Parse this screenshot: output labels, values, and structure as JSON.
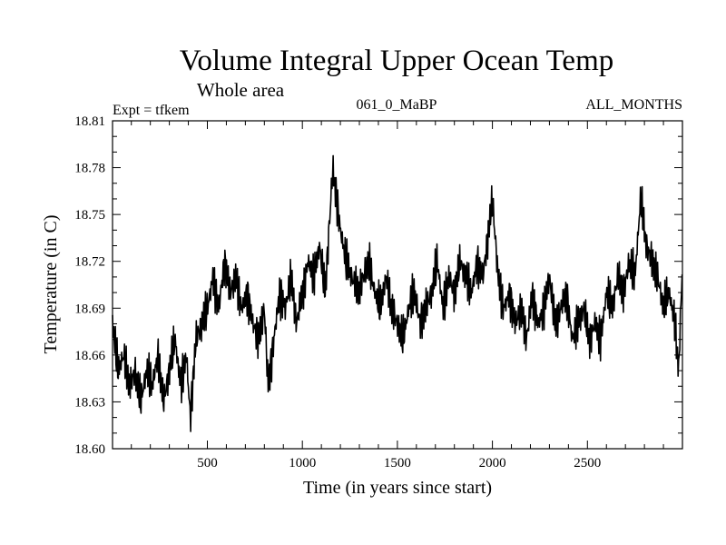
{
  "chart_data": {
    "type": "line",
    "title": "Volume Integral Upper Ocean Temp",
    "subtitle": "Whole area",
    "annotations": {
      "left": "Expt = tfkem",
      "center": "061_0_MaBP",
      "right": "ALL_MONTHS"
    },
    "xlabel": "Time (in years since start)",
    "ylabel": "Temperature (in C)",
    "xlim": [
      1,
      3000
    ],
    "ylim": [
      18.6,
      18.81
    ],
    "xticks": [
      500,
      1000,
      1500,
      2000,
      2500
    ],
    "xtick_labels": [
      "500",
      "1000",
      "1500",
      "2000",
      "2500"
    ],
    "yticks": [
      18.6,
      18.63,
      18.66,
      18.69,
      18.72,
      18.75,
      18.78,
      18.81
    ],
    "ytick_labels": [
      "18.60",
      "18.63",
      "18.66",
      "18.69",
      "18.72",
      "18.75",
      "18.78",
      "18.81"
    ],
    "grid": false,
    "series": [
      {
        "color": "#000000",
        "x": [
          1,
          30,
          60,
          90,
          120,
          150,
          180,
          210,
          240,
          270,
          300,
          330,
          360,
          390,
          410,
          440,
          470,
          500,
          530,
          560,
          590,
          620,
          650,
          680,
          710,
          740,
          770,
          800,
          820,
          850,
          880,
          910,
          940,
          970,
          1000,
          1030,
          1060,
          1090,
          1120,
          1150,
          1160,
          1180,
          1200,
          1230,
          1260,
          1290,
          1320,
          1350,
          1380,
          1410,
          1440,
          1470,
          1500,
          1530,
          1560,
          1590,
          1620,
          1650,
          1680,
          1710,
          1740,
          1770,
          1800,
          1830,
          1860,
          1890,
          1920,
          1950,
          1980,
          2000,
          2030,
          2060,
          2090,
          2120,
          2150,
          2180,
          2210,
          2240,
          2270,
          2300,
          2330,
          2360,
          2390,
          2420,
          2450,
          2480,
          2510,
          2540,
          2570,
          2600,
          2630,
          2660,
          2690,
          2720,
          2750,
          2780,
          2810,
          2840,
          2870,
          2900,
          2930,
          2960,
          2980,
          3000
        ],
        "y": [
          18.68,
          18.65,
          18.66,
          18.64,
          18.65,
          18.63,
          18.65,
          18.64,
          18.66,
          18.63,
          18.65,
          18.67,
          18.64,
          18.66,
          18.62,
          18.67,
          18.68,
          18.69,
          18.71,
          18.69,
          18.72,
          18.7,
          18.71,
          18.69,
          18.7,
          18.68,
          18.67,
          18.69,
          18.64,
          18.67,
          18.7,
          18.69,
          18.71,
          18.68,
          18.7,
          18.72,
          18.71,
          18.73,
          18.7,
          18.76,
          18.78,
          18.76,
          18.74,
          18.72,
          18.71,
          18.7,
          18.71,
          18.72,
          18.7,
          18.69,
          18.71,
          18.69,
          18.68,
          18.67,
          18.69,
          18.7,
          18.68,
          18.69,
          18.7,
          18.72,
          18.69,
          18.71,
          18.7,
          18.72,
          18.71,
          18.7,
          18.72,
          18.71,
          18.74,
          18.76,
          18.71,
          18.69,
          18.7,
          18.68,
          18.69,
          18.67,
          18.7,
          18.68,
          18.69,
          18.71,
          18.68,
          18.69,
          18.7,
          18.67,
          18.68,
          18.69,
          18.67,
          18.68,
          18.67,
          18.7,
          18.69,
          18.71,
          18.7,
          18.72,
          18.71,
          18.76,
          18.73,
          18.72,
          18.71,
          18.69,
          18.7,
          18.68,
          18.65,
          18.72
        ]
      }
    ]
  }
}
